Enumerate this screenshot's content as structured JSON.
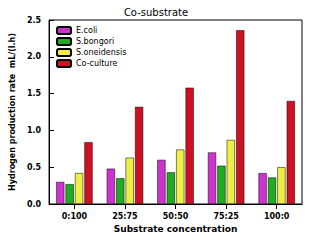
{
  "chart_data": {
    "type": "bar",
    "title": "Co-substrate",
    "x_label": "Substrate concentration",
    "y_label": "Hydrogen production rate  mL/(l.h)",
    "categories": [
      "0:100",
      "25:75",
      "50:50",
      "75:25",
      "100:0"
    ],
    "series": [
      {
        "name": "E.coli",
        "color": "#cc33cc",
        "values": [
          0.3,
          0.48,
          0.6,
          0.7,
          0.42
        ]
      },
      {
        "name": "S.bongori",
        "color": "#22aa22",
        "values": [
          0.27,
          0.35,
          0.43,
          0.52,
          0.36
        ]
      },
      {
        "name": "S.oneidensis",
        "color": "#eeee44",
        "values": [
          0.42,
          0.63,
          0.74,
          0.87,
          0.5
        ]
      },
      {
        "name": "Co-culture",
        "color": "#cc1122",
        "values": [
          0.84,
          1.32,
          1.58,
          2.36,
          1.4
        ]
      }
    ],
    "ylim": [
      0,
      2.5
    ],
    "yticks": [
      {
        "value": 0,
        "label": "0.0"
      },
      {
        "value": 0.5,
        "label": "0.5"
      },
      {
        "value": 1,
        "label": "1.0"
      },
      {
        "value": 1.5,
        "label": "1.5"
      },
      {
        "value": 2,
        "label": "2.0"
      },
      {
        "value": 2.5,
        "label": "2.5"
      }
    ],
    "grid": false,
    "legend": "upper left"
  }
}
